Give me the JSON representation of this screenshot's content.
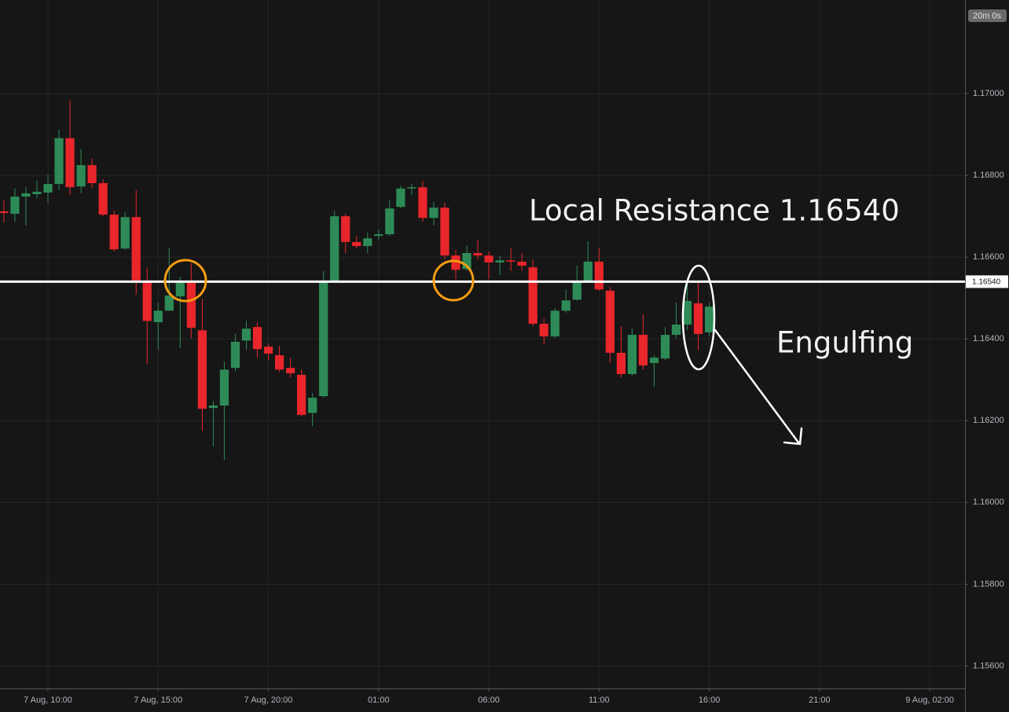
{
  "chart_data": {
    "type": "candlestick",
    "x": [
      -2,
      -1.5,
      -1,
      -0.5,
      0,
      0.5,
      1,
      1.5,
      2,
      2.5,
      3,
      3.5,
      4,
      4.5,
      5,
      5.5,
      6,
      6.5,
      7,
      7.5,
      8,
      8.5,
      9,
      9.5,
      10,
      10.5,
      11,
      11.5,
      12,
      12.5,
      13,
      13.5,
      14,
      14.5,
      15,
      15.5,
      16,
      16.5,
      17,
      17.5,
      18,
      18.5,
      19,
      19.5,
      20,
      20.5,
      21,
      21.5,
      22,
      22.5,
      23,
      23.5,
      24,
      24.5,
      25,
      25.5,
      26,
      26.5,
      27,
      27.5,
      28,
      28.5,
      29,
      29.5,
      30
    ],
    "open": [
      1.16712,
      1.16706,
      1.16748,
      1.16754,
      1.16758,
      1.16779,
      1.16891,
      1.16773,
      1.16825,
      1.16781,
      1.16704,
      1.16621,
      1.16698,
      1.16543,
      1.16441,
      1.16469,
      1.16504,
      1.16537,
      1.16421,
      1.16231,
      1.16237,
      1.16329,
      1.16396,
      1.16429,
      1.16381,
      1.1636,
      1.16329,
      1.16312,
      1.16219,
      1.1626,
      1.16541,
      1.167,
      1.16637,
      1.16627,
      1.16652,
      1.16656,
      1.16723,
      1.16768,
      1.16771,
      1.16696,
      1.16721,
      1.16604,
      1.16571,
      1.1661,
      1.16604,
      1.16587,
      1.16592,
      1.16589,
      1.16575,
      1.16437,
      1.16406,
      1.16469,
      1.16496,
      1.16541,
      1.16589,
      1.16518,
      1.16366,
      1.16314,
      1.1641,
      1.16341,
      1.16352,
      1.1641,
      1.16435,
      1.16487,
      1.16416
    ],
    "high": [
      1.16739,
      1.16768,
      1.16771,
      1.16787,
      1.16802,
      1.16912,
      1.16983,
      1.16864,
      1.16841,
      1.16791,
      1.16714,
      1.1671,
      1.16764,
      1.16575,
      1.16489,
      1.16623,
      1.16552,
      1.16585,
      1.16498,
      1.16248,
      1.16344,
      1.16412,
      1.16444,
      1.16441,
      1.16389,
      1.16383,
      1.16354,
      1.16325,
      1.16268,
      1.16566,
      1.16714,
      1.16706,
      1.16652,
      1.1666,
      1.16668,
      1.16739,
      1.16775,
      1.16779,
      1.16787,
      1.16735,
      1.16733,
      1.16618,
      1.16629,
      1.16643,
      1.16614,
      1.16604,
      1.16623,
      1.1661,
      1.16594,
      1.1645,
      1.16475,
      1.16521,
      1.16579,
      1.16639,
      1.16621,
      1.16527,
      1.16431,
      1.16425,
      1.1646,
      1.1636,
      1.16429,
      1.16489,
      1.16537,
      1.16541,
      1.16489
    ],
    "low": [
      1.16685,
      1.16687,
      1.16677,
      1.16744,
      1.16733,
      1.16764,
      1.16752,
      1.16756,
      1.16768,
      1.167,
      1.16614,
      1.16618,
      1.16508,
      1.16339,
      1.16373,
      1.16469,
      1.16377,
      1.16402,
      1.16175,
      1.16137,
      1.16104,
      1.16321,
      1.16373,
      1.16354,
      1.16348,
      1.16319,
      1.16306,
      1.1621,
      1.16187,
      1.16256,
      1.16541,
      1.1661,
      1.16621,
      1.1661,
      1.16643,
      1.16652,
      1.16719,
      1.16752,
      1.16687,
      1.16677,
      1.16594,
      1.16546,
      1.16566,
      1.16594,
      1.16546,
      1.16556,
      1.16566,
      1.16566,
      1.16431,
      1.16387,
      1.16402,
      1.16464,
      1.16493,
      1.16537,
      1.16518,
      1.16341,
      1.16306,
      1.1631,
      1.16325,
      1.16283,
      1.16348,
      1.16402,
      1.16421,
      1.16373,
      1.16406
    ],
    "close": [
      1.16708,
      1.16748,
      1.16756,
      1.1676,
      1.16779,
      1.16891,
      1.16771,
      1.16825,
      1.16781,
      1.16704,
      1.16619,
      1.16698,
      1.16543,
      1.16444,
      1.16469,
      1.16506,
      1.16537,
      1.16427,
      1.16229,
      1.16237,
      1.16325,
      1.16393,
      1.16425,
      1.16375,
      1.16364,
      1.16325,
      1.16316,
      1.16214,
      1.16256,
      1.16541,
      1.167,
      1.16637,
      1.16627,
      1.16646,
      1.16656,
      1.16719,
      1.16768,
      1.16771,
      1.16696,
      1.16721,
      1.16604,
      1.16569,
      1.1661,
      1.16604,
      1.16587,
      1.16592,
      1.16589,
      1.16579,
      1.16437,
      1.16406,
      1.16469,
      1.16494,
      1.16541,
      1.16589,
      1.16521,
      1.16366,
      1.16314,
      1.1641,
      1.16335,
      1.16354,
      1.1641,
      1.16435,
      1.16493,
      1.16412,
      1.16479
    ],
    "up_color": "#2e8b57",
    "down_color": "#e8262b",
    "xlim": [
      -2.175,
      41.6
    ],
    "ylim": [
      1.15545,
      1.17229
    ],
    "xticks": [
      {
        "value": 0,
        "label": "7 Aug, 10:00"
      },
      {
        "value": 5,
        "label": "7 Aug, 15:00"
      },
      {
        "value": 10,
        "label": "7 Aug, 20:00"
      },
      {
        "value": 15,
        "label": "01:00"
      },
      {
        "value": 20,
        "label": "06:00"
      },
      {
        "value": 25,
        "label": "11:00"
      },
      {
        "value": 30,
        "label": "16:00"
      },
      {
        "value": 35,
        "label": "21:00"
      },
      {
        "value": 40,
        "label": "9 Aug, 02:00"
      }
    ],
    "yticks": [
      {
        "value": 1.156,
        "label": "1.15600"
      },
      {
        "value": 1.158,
        "label": "1.15800"
      },
      {
        "value": 1.16,
        "label": "1.16000"
      },
      {
        "value": 1.162,
        "label": "1.16200"
      },
      {
        "value": 1.164,
        "label": "1.16400"
      },
      {
        "value": 1.166,
        "label": "1.16600"
      },
      {
        "value": 1.168,
        "label": "1.16800"
      },
      {
        "value": 1.17,
        "label": "1.17000"
      }
    ],
    "grid": true,
    "hline": {
      "value": 1.1654,
      "label": "1.16540",
      "color": "#ffffff"
    },
    "countdown": "20m 0s",
    "annotations": [
      "Local Resistance 1.16540",
      "Engulfing"
    ]
  }
}
